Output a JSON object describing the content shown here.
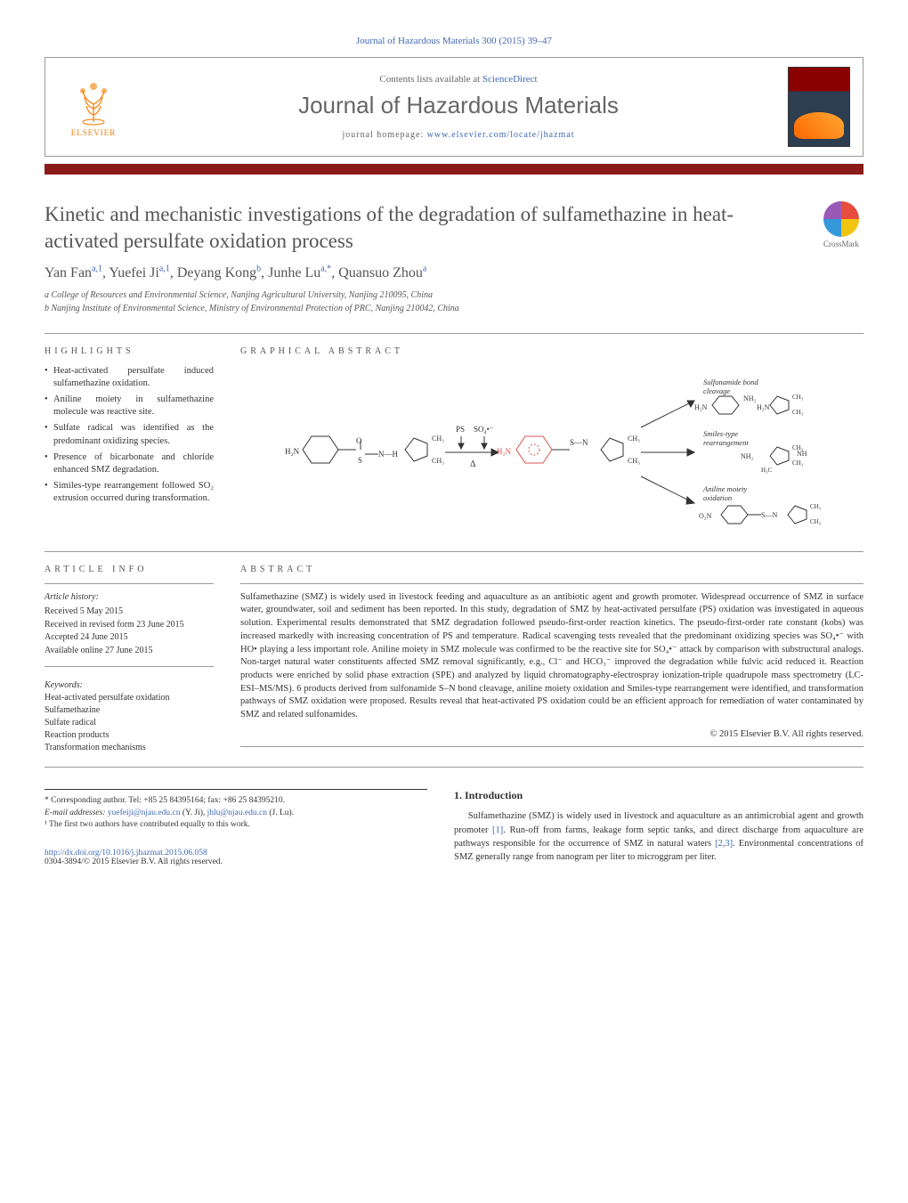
{
  "header": {
    "citation": "Journal of Hazardous Materials 300 (2015) 39–47",
    "contents_prefix": "Contents lists available at ",
    "contents_link": "ScienceDirect",
    "journal_name": "Journal of Hazardous Materials",
    "homepage_prefix": "journal homepage: ",
    "homepage_url": "www.elsevier.com/locate/jhazmat",
    "publisher_label": "ELSEVIER",
    "crossmark_label": "CrossMark"
  },
  "colors": {
    "accent_bar": "#8b1a1a",
    "link": "#4169b0",
    "text": "#333333",
    "muted": "#666666",
    "publisher_orange": "#f57c00"
  },
  "article": {
    "title": "Kinetic and mechanistic investigations of the degradation of sulfamethazine in heat-activated persulfate oxidation process",
    "authors_html": "Yan Fan<sup>a,1</sup>, Yuefei Ji<sup>a,1</sup>, Deyang Kong<sup>b</sup>, Junhe Lu<sup>a,*</sup>, Quansuo Zhou<sup>a</sup>",
    "affiliations": [
      "a College of Resources and Environmental Science, Nanjing Agricultural University, Nanjing 210095, China",
      "b Nanjing Institute of Environmental Science, Ministry of Environmental Protection of PRC, Nanjing 210042, China"
    ]
  },
  "highlights_label": "HIGHLIGHTS",
  "highlights": [
    "Heat-activated persulfate induced sulfamethazine oxidation.",
    "Aniline moiety in sulfamethazine molecule was reactive site.",
    "Sulfate radical was identified as the predominant oxidizing species.",
    "Presence of bicarbonate and chloride enhanced SMZ degradation.",
    "Similes-type rearrangement followed SO₂ extrusion occurred during transformation."
  ],
  "graphical_abstract_label": "GRAPHICAL ABSTRACT",
  "graphical_abstract": {
    "reactant_label_left": "H₂N",
    "arrow_top_labels": [
      "PS",
      "SO₄•⁻",
      "Δ"
    ],
    "pathway_labels": [
      "Sulfonamide bond cleavage",
      "Smiles-type rearrangement",
      "Aniline moiety oxidation"
    ],
    "fragment_labels": [
      "H₂N",
      "CH₃",
      "NH₂",
      "NH",
      "H₃C",
      "O₂N"
    ],
    "aromatic_ring_color": "#d9534f",
    "bond_color": "#333333"
  },
  "article_info_label": "ARTICLE INFO",
  "article_info": {
    "history_label": "Article history:",
    "received": "Received 5 May 2015",
    "revised": "Received in revised form 23 June 2015",
    "accepted": "Accepted 24 June 2015",
    "online": "Available online 27 June 2015",
    "keywords_label": "Keywords:",
    "keywords": [
      "Heat-activated persulfate oxidation",
      "Sulfamethazine",
      "Sulfate radical",
      "Reaction products",
      "Transformation mechanisms"
    ]
  },
  "abstract_label": "ABSTRACT",
  "abstract": "Sulfamethazine (SMZ) is widely used in livestock feeding and aquaculture as an antibiotic agent and growth promoter. Widespread occurrence of SMZ in surface water, groundwater, soil and sediment has been reported. In this study, degradation of SMZ by heat-activated persulfate (PS) oxidation was investigated in aqueous solution. Experimental results demonstrated that SMZ degradation followed pseudo-first-order reaction kinetics. The pseudo-first-order rate constant (kobs) was increased markedly with increasing concentration of PS and temperature. Radical scavenging tests revealed that the predominant oxidizing species was SO₄•⁻ with HO• playing a less important role. Aniline moiety in SMZ molecule was confirmed to be the reactive site for SO₄•⁻ attack by comparison with substructural analogs. Non-target natural water constituents affected SMZ removal significantly, e.g., Cl⁻ and HCO₃⁻ improved the degradation while fulvic acid reduced it. Reaction products were enriched by solid phase extraction (SPE) and analyzed by liquid chromatography-electrospray ionization-triple quadrupole mass spectrometry (LC-ESI–MS/MS). 6 products derived from sulfonamide S–N bond cleavage, aniline moiety oxidation and Smiles-type rearrangement were identified, and transformation pathways of SMZ oxidation were proposed. Results reveal that heat-activated PS oxidation could be an efficient approach for remediation of water contaminated by SMZ and related sulfonamides.",
  "copyright": "© 2015 Elsevier B.V. All rights reserved.",
  "intro": {
    "heading": "1. Introduction",
    "text_html": "Sulfamethazine (SMZ) is widely used in livestock and aquaculture as an antimicrobial agent and growth promoter <a href=\"#\">[1]</a>. Run-off from farms, leakage form septic tanks, and direct discharge from aquaculture are pathways responsible for the occurrence of SMZ in natural waters <a href=\"#\">[2,3]</a>. Environmental concentrations of SMZ generally range from nanogram per liter to microggram per liter."
  },
  "footnotes": {
    "corr": "* Corresponding author. Tel: +85 25 84395164; fax: +86 25 84395210.",
    "emails_label": "E-mail addresses: ",
    "email1": "yuefeiji@njau.edu.cn",
    "email1_name": " (Y. Ji), ",
    "email2": "jhlu@njau.edu.cn",
    "email2_name": " (J. Lu).",
    "equal": "¹ The first two authors have contributed equally to this work."
  },
  "doi": {
    "url": "http://dx.doi.org/10.1016/j.jhazmat.2015.06.058",
    "issn_line": "0304-3894/© 2015 Elsevier B.V. All rights reserved."
  }
}
